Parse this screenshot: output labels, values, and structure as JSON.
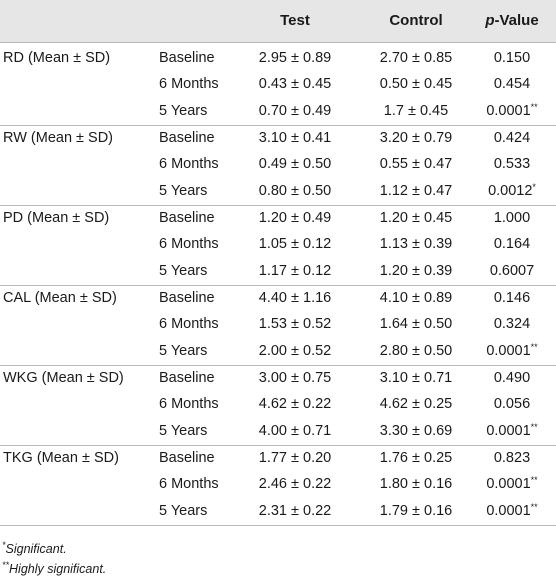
{
  "headers": [
    "",
    "",
    "Test",
    "Control",
    "p-Value"
  ],
  "groups": [
    {
      "label": "RD (Mean ± SD)",
      "rows": [
        {
          "time": "Baseline",
          "test": "2.95 ± 0.89",
          "control": "2.70 ± 0.85",
          "p": "0.150",
          "sig": ""
        },
        {
          "time": "6 Months",
          "test": "0.43 ± 0.45",
          "control": "0.50 ± 0.45",
          "p": "0.454",
          "sig": ""
        },
        {
          "time": "5 Years",
          "test": "0.70 ± 0.49",
          "control": "1.7 ± 0.45",
          "p": "0.0001",
          "sig": "**"
        }
      ]
    },
    {
      "label": "RW (Mean ± SD)",
      "rows": [
        {
          "time": "Baseline",
          "test": "3.10 ± 0.41",
          "control": "3.20 ± 0.79",
          "p": "0.424",
          "sig": ""
        },
        {
          "time": "6 Months",
          "test": "0.49 ± 0.50",
          "control": "0.55 ± 0.47",
          "p": "0.533",
          "sig": ""
        },
        {
          "time": "5 Years",
          "test": "0.80 ± 0.50",
          "control": "1.12 ± 0.47",
          "p": "0.0012",
          "sig": "*"
        }
      ]
    },
    {
      "label": "PD (Mean ± SD)",
      "rows": [
        {
          "time": "Baseline",
          "test": "1.20 ± 0.49",
          "control": "1.20 ± 0.45",
          "p": "1.000",
          "sig": ""
        },
        {
          "time": "6 Months",
          "test": "1.05 ± 0.12",
          "control": "1.13 ± 0.39",
          "p": "0.164",
          "sig": ""
        },
        {
          "time": "5 Years",
          "test": "1.17 ± 0.12",
          "control": "1.20 ± 0.39",
          "p": "0.6007",
          "sig": ""
        }
      ]
    },
    {
      "label": "CAL (Mean ± SD)",
      "rows": [
        {
          "time": "Baseline",
          "test": "4.40 ± 1.16",
          "control": "4.10 ± 0.89",
          "p": "0.146",
          "sig": ""
        },
        {
          "time": "6 Months",
          "test": "1.53 ± 0.52",
          "control": "1.64 ± 0.50",
          "p": "0.324",
          "sig": ""
        },
        {
          "time": "5 Years",
          "test": "2.00 ± 0.52",
          "control": "2.80 ± 0.50",
          "p": "0.0001",
          "sig": "**"
        }
      ]
    },
    {
      "label": "WKG (Mean ± SD)",
      "rows": [
        {
          "time": "Baseline",
          "test": "3.00 ± 0.75",
          "control": "3.10 ± 0.71",
          "p": "0.490",
          "sig": ""
        },
        {
          "time": "6 Months",
          "test": "4.62 ± 0.22",
          "control": "4.62 ± 0.25",
          "p": "0.056",
          "sig": ""
        },
        {
          "time": "5 Years",
          "test": "4.00 ± 0.71",
          "control": "3.30 ± 0.69",
          "p": "0.0001",
          "sig": "**"
        }
      ]
    },
    {
      "label": "TKG (Mean ± SD)",
      "rows": [
        {
          "time": "Baseline",
          "test": "1.77 ± 0.20",
          "control": "1.76 ± 0.25",
          "p": "0.823",
          "sig": ""
        },
        {
          "time": "6 Months",
          "test": "2.46 ± 0.22",
          "control": "1.80 ± 0.16",
          "p": "0.0001",
          "sig": "**"
        },
        {
          "time": "5 Years",
          "test": "2.31 ± 0.22",
          "control": "1.79 ± 0.16",
          "p": "0.0001",
          "sig": "**"
        }
      ]
    }
  ],
  "footnotes": [
    {
      "mark": "*",
      "text": "Significant."
    },
    {
      "mark": "**",
      "text": "Highly significant."
    }
  ]
}
